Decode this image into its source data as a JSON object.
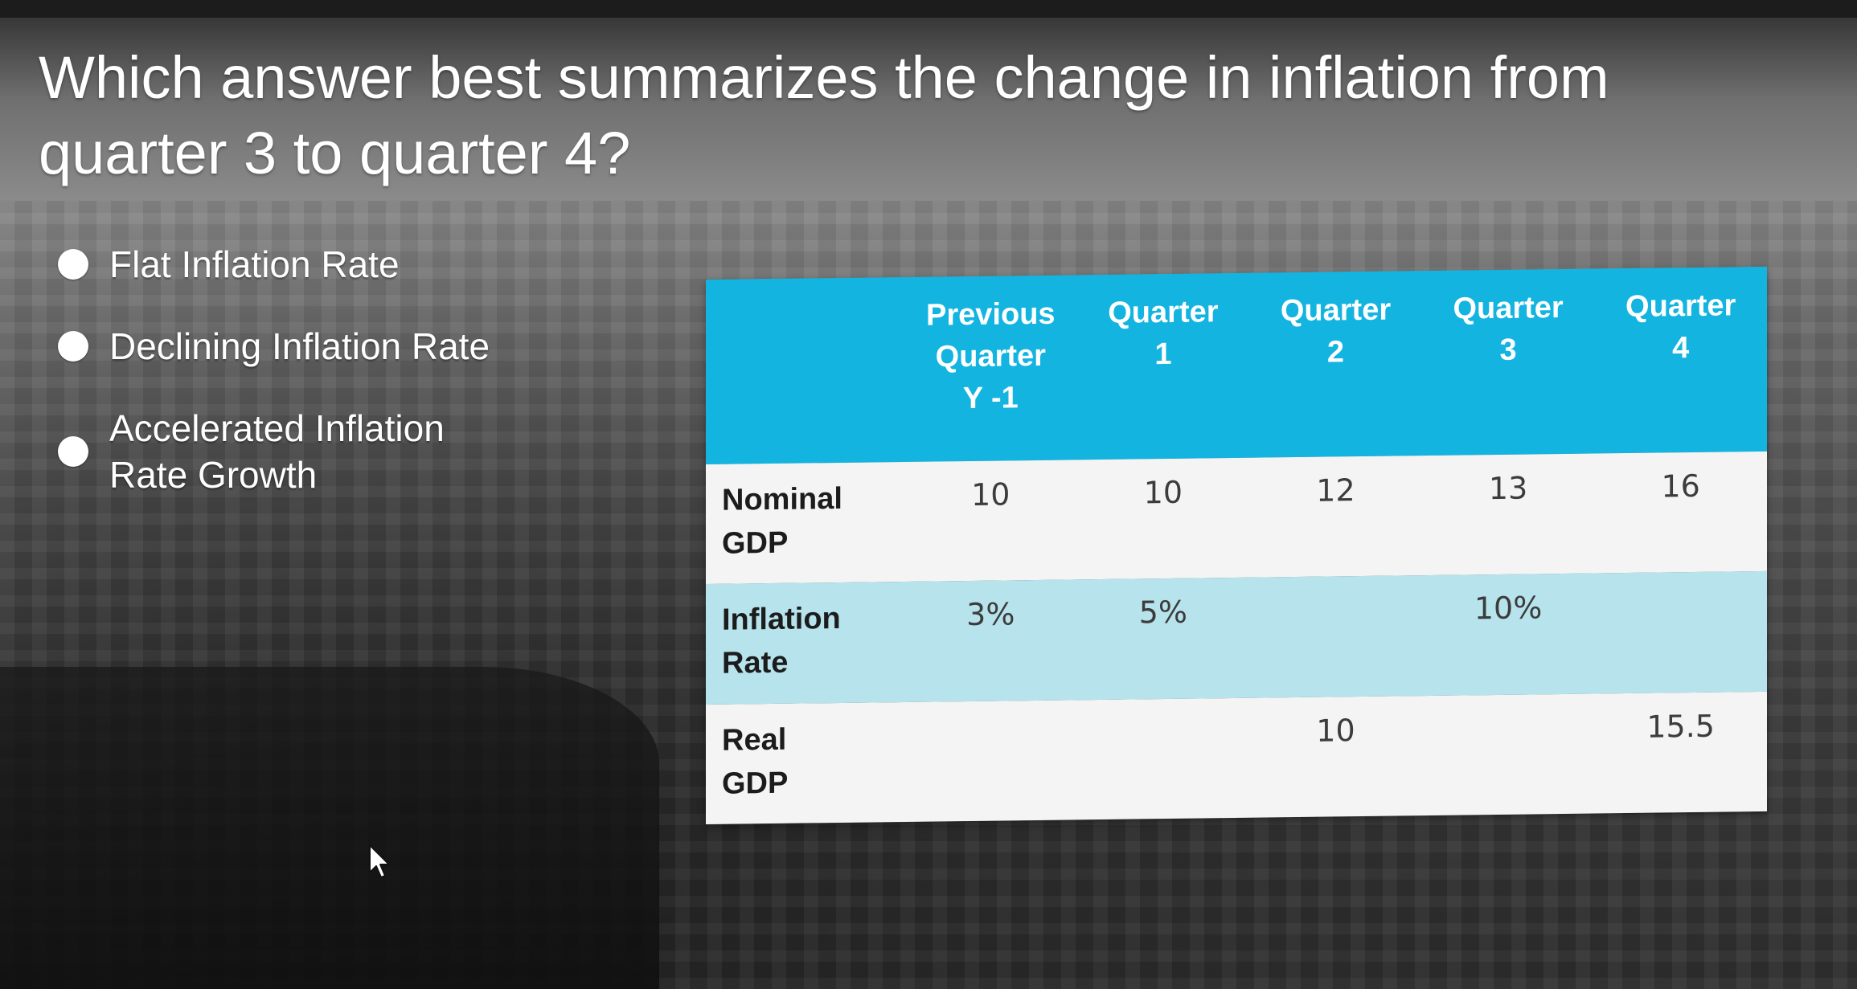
{
  "question": "Which answer best summarizes the change in inflation from quarter 3 to quarter 4?",
  "options": [
    {
      "label": "Flat Inflation Rate"
    },
    {
      "label": "Declining Inflation Rate"
    },
    {
      "label": "Accelerated Inflation\nRate Growth"
    }
  ],
  "table": {
    "headers": [
      "Previous\nQuarter\nY -1",
      "Quarter\n1",
      "Quarter\n2",
      "Quarter\n3",
      "Quarter\n4"
    ],
    "rows": [
      {
        "label": "Nominal\nGDP",
        "cells": [
          "10",
          "10",
          "12",
          "13",
          "16"
        ]
      },
      {
        "label": "Inflation\nRate",
        "cells": [
          "3%",
          "5%",
          "",
          "10%",
          ""
        ]
      },
      {
        "label": "Real\nGDP",
        "cells": [
          "",
          "",
          "10",
          "",
          "15.5"
        ]
      }
    ]
  },
  "colors": {
    "header_bg": "#14b4e1",
    "row_tint": "#b7e3ec",
    "row_white": "#f4f4f4"
  }
}
